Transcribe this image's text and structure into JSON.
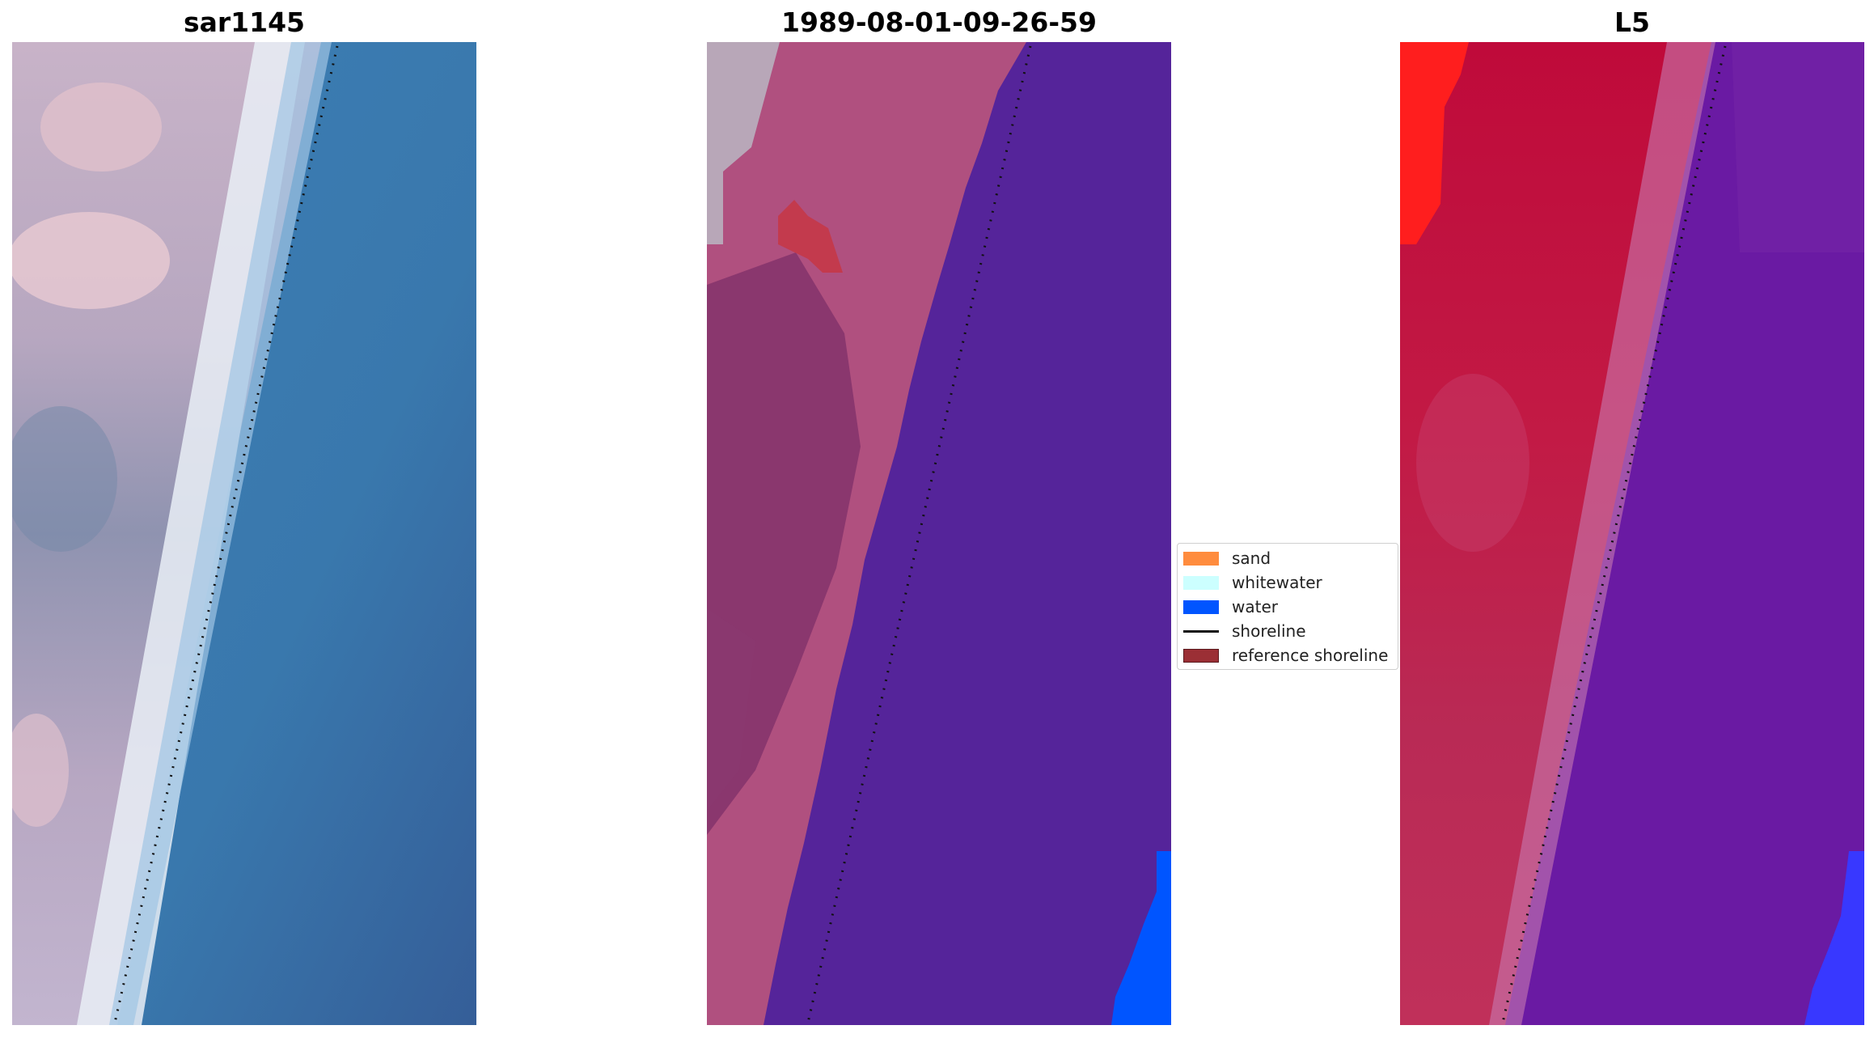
{
  "titles": {
    "rgb": "sar1145",
    "classified": "1989-08-01-09-26-59",
    "mndwi": "L5"
  },
  "legend": {
    "items": [
      {
        "label": "sand",
        "color": "#ff8c3e",
        "kind": "patch"
      },
      {
        "label": "whitewater",
        "color": "#ccffff",
        "kind": "patch"
      },
      {
        "label": "water",
        "color": "#0055ff",
        "kind": "patch"
      },
      {
        "label": "shoreline",
        "color": "#111111",
        "kind": "line"
      },
      {
        "label": "reference shoreline",
        "color": "#9b2f35",
        "kind": "patch"
      }
    ]
  },
  "colors": {
    "ocean_rgb": "#3b79ad",
    "surf_rgb": "#eef4fb",
    "land_rgb": "#b9a5c3",
    "ocean_class": "#55249a",
    "land_class": "#b0507f",
    "land_class_dark": "#7d2f68",
    "ocean_l5": "#6a1aa3",
    "land_l5": "#c0103e"
  }
}
